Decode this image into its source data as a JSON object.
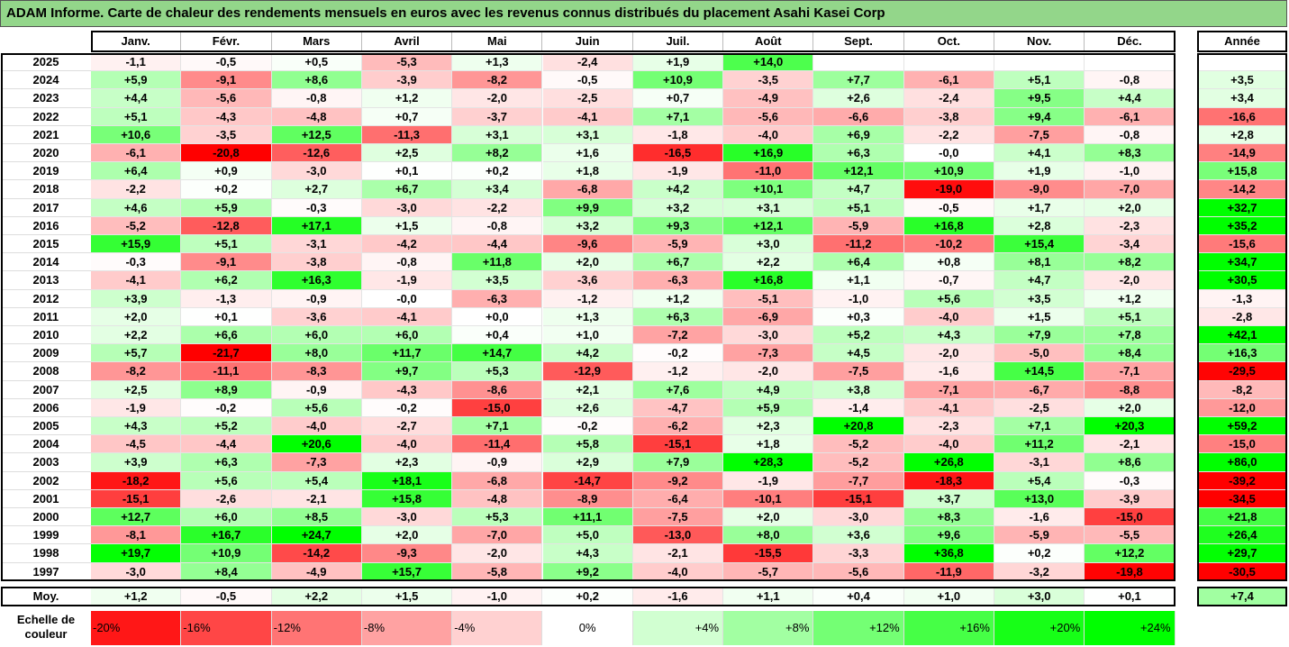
{
  "title": "ADAM Informe. Carte de chaleur des rendements mensuels en euros avec les revenus connus distribués du placement Asahi Kasei Corp",
  "months": [
    "Janv.",
    "Févr.",
    "Mars",
    "Avril",
    "Mai",
    "Juin",
    "Juil.",
    "Août",
    "Sept.",
    "Oct.",
    "Nov.",
    "Déc."
  ],
  "year_header": "Année",
  "avg_label": "Moy.",
  "legend_label": "Echelle de couleur",
  "chart_data": {
    "type": "heatmap",
    "rows": [
      {
        "year": "2025",
        "values": [
          -1.1,
          -0.5,
          0.5,
          -5.3,
          1.3,
          -2.4,
          1.9,
          14.0,
          null,
          null,
          null,
          null
        ],
        "annual": null
      },
      {
        "year": "2024",
        "values": [
          5.9,
          -9.1,
          8.6,
          -3.9,
          -8.2,
          -0.5,
          10.9,
          -3.5,
          7.7,
          -6.1,
          5.1,
          -0.8
        ],
        "annual": 3.5
      },
      {
        "year": "2023",
        "values": [
          4.4,
          -5.6,
          -0.8,
          1.2,
          -2.0,
          -2.5,
          0.7,
          -4.9,
          2.6,
          -2.4,
          9.5,
          4.4
        ],
        "annual": 3.4
      },
      {
        "year": "2022",
        "values": [
          5.1,
          -4.3,
          -4.8,
          0.7,
          -3.7,
          -4.1,
          7.1,
          -5.6,
          -6.6,
          -3.8,
          9.4,
          -6.1
        ],
        "annual": -16.6
      },
      {
        "year": "2021",
        "values": [
          10.6,
          -3.5,
          12.5,
          -11.3,
          3.1,
          3.1,
          -1.8,
          -4.0,
          6.9,
          -2.2,
          -7.5,
          -0.8
        ],
        "annual": 2.8
      },
      {
        "year": "2020",
        "values": [
          -6.1,
          -20.8,
          -12.6,
          2.5,
          8.2,
          1.6,
          -16.5,
          16.9,
          6.3,
          -0.0,
          4.1,
          8.3
        ],
        "annual": -14.9
      },
      {
        "year": "2019",
        "values": [
          6.4,
          0.9,
          -3.0,
          0.1,
          0.2,
          1.8,
          -1.9,
          -11.0,
          12.1,
          10.9,
          1.9,
          -1.0
        ],
        "annual": 15.8
      },
      {
        "year": "2018",
        "values": [
          -2.2,
          0.2,
          2.7,
          6.7,
          3.4,
          -6.8,
          4.2,
          10.1,
          4.7,
          -19.0,
          -9.0,
          -7.0
        ],
        "annual": -14.2
      },
      {
        "year": "2017",
        "values": [
          4.6,
          5.9,
          -0.3,
          -3.0,
          -2.2,
          9.9,
          3.2,
          3.1,
          5.1,
          -0.5,
          1.7,
          2.0
        ],
        "annual": 32.7
      },
      {
        "year": "2016",
        "values": [
          -5.2,
          -12.8,
          17.1,
          1.5,
          -0.8,
          3.2,
          9.3,
          12.1,
          -5.9,
          16.8,
          2.8,
          -2.3
        ],
        "annual": 35.2
      },
      {
        "year": "2015",
        "values": [
          15.9,
          5.1,
          -3.1,
          -4.2,
          -4.4,
          -9.6,
          -5.9,
          3.0,
          -11.2,
          -10.2,
          15.4,
          -3.4
        ],
        "annual": -15.6
      },
      {
        "year": "2014",
        "values": [
          -0.3,
          -9.1,
          -3.8,
          -0.8,
          11.8,
          2.0,
          6.7,
          2.2,
          6.4,
          0.8,
          8.1,
          8.2
        ],
        "annual": 34.7
      },
      {
        "year": "2013",
        "values": [
          -4.1,
          6.2,
          16.3,
          -1.9,
          3.5,
          -3.6,
          -6.3,
          16.8,
          1.1,
          -0.7,
          4.7,
          -2.0
        ],
        "annual": 30.5
      },
      {
        "year": "2012",
        "values": [
          3.9,
          -1.3,
          -0.9,
          -0.0,
          -6.3,
          -1.2,
          1.2,
          -5.1,
          -1.0,
          5.6,
          3.5,
          1.2
        ],
        "annual": -1.3
      },
      {
        "year": "2011",
        "values": [
          2.0,
          0.1,
          -3.6,
          -4.1,
          0.0,
          1.3,
          6.3,
          -6.9,
          0.3,
          -4.0,
          1.5,
          5.1
        ],
        "annual": -2.8
      },
      {
        "year": "2010",
        "values": [
          2.2,
          6.6,
          6.0,
          6.0,
          0.4,
          1.0,
          -7.2,
          -3.0,
          5.2,
          4.3,
          7.9,
          7.8
        ],
        "annual": 42.1
      },
      {
        "year": "2009",
        "values": [
          5.7,
          -21.7,
          8.0,
          11.7,
          14.7,
          4.2,
          -0.2,
          -7.3,
          4.5,
          -2.0,
          -5.0,
          8.4
        ],
        "annual": 16.3
      },
      {
        "year": "2008",
        "values": [
          -8.2,
          -11.1,
          -8.3,
          9.7,
          5.3,
          -12.9,
          -1.2,
          -2.0,
          -7.5,
          -1.6,
          14.5,
          -7.1
        ],
        "annual": -29.5
      },
      {
        "year": "2007",
        "values": [
          2.5,
          8.9,
          -0.9,
          -4.3,
          -8.6,
          2.1,
          7.6,
          4.9,
          3.8,
          -7.1,
          -6.7,
          -8.8
        ],
        "annual": -8.2
      },
      {
        "year": "2006",
        "values": [
          -1.9,
          -0.2,
          5.6,
          -0.2,
          -15.0,
          2.6,
          -4.7,
          5.9,
          -1.4,
          -4.1,
          -2.5,
          2.0
        ],
        "annual": -12.0
      },
      {
        "year": "2005",
        "values": [
          4.3,
          5.2,
          -4.0,
          -2.7,
          7.1,
          -0.2,
          -6.2,
          2.3,
          20.8,
          -2.3,
          7.1,
          20.3
        ],
        "annual": 59.2
      },
      {
        "year": "2004",
        "values": [
          -4.5,
          -4.4,
          20.6,
          -4.0,
          -11.4,
          5.8,
          -15.1,
          1.8,
          -5.2,
          -4.0,
          11.2,
          -2.1
        ],
        "annual": -15.0
      },
      {
        "year": "2003",
        "values": [
          3.9,
          6.3,
          -7.3,
          2.3,
          -0.9,
          2.9,
          7.9,
          28.3,
          -5.2,
          26.8,
          -3.1,
          8.6
        ],
        "annual": 86.0
      },
      {
        "year": "2002",
        "values": [
          -18.2,
          5.6,
          5.4,
          18.1,
          -6.8,
          -14.7,
          -9.2,
          -1.9,
          -7.7,
          -18.3,
          5.4,
          -0.3
        ],
        "annual": -39.2
      },
      {
        "year": "2001",
        "values": [
          -15.1,
          -2.6,
          -2.1,
          15.8,
          -4.8,
          -8.9,
          -6.4,
          -10.1,
          -15.1,
          3.7,
          13.0,
          -3.9
        ],
        "annual": -34.5
      },
      {
        "year": "2000",
        "values": [
          12.7,
          6.0,
          8.5,
          -3.0,
          5.3,
          11.1,
          -7.5,
          2.0,
          -3.0,
          8.3,
          -1.6,
          -15.0
        ],
        "annual": 21.8
      },
      {
        "year": "1999",
        "values": [
          -8.1,
          16.7,
          24.7,
          2.0,
          -7.0,
          5.0,
          -13.0,
          8.0,
          3.6,
          9.6,
          -5.9,
          -5.5
        ],
        "annual": 26.4
      },
      {
        "year": "1998",
        "values": [
          19.7,
          10.9,
          -14.2,
          -9.3,
          -2.0,
          4.3,
          -2.1,
          -15.5,
          -3.3,
          36.8,
          0.2,
          12.2
        ],
        "annual": 29.7
      },
      {
        "year": "1997",
        "values": [
          -3.0,
          8.4,
          -4.9,
          15.7,
          -5.8,
          9.2,
          -4.0,
          -5.7,
          -5.6,
          -11.9,
          -3.2,
          -19.8
        ],
        "annual": -30.5
      }
    ],
    "averages": [
      1.2,
      -0.5,
      2.2,
      1.5,
      -1.0,
      0.2,
      -1.6,
      1.1,
      0.4,
      1.0,
      3.0,
      0.1
    ],
    "annual_average": 7.4,
    "scale": [
      "-20%",
      "-16%",
      "-12%",
      "-8%",
      "-4%",
      "0%",
      "+4%",
      "+8%",
      "+12%",
      "+16%",
      "+20%",
      "+24%"
    ]
  }
}
